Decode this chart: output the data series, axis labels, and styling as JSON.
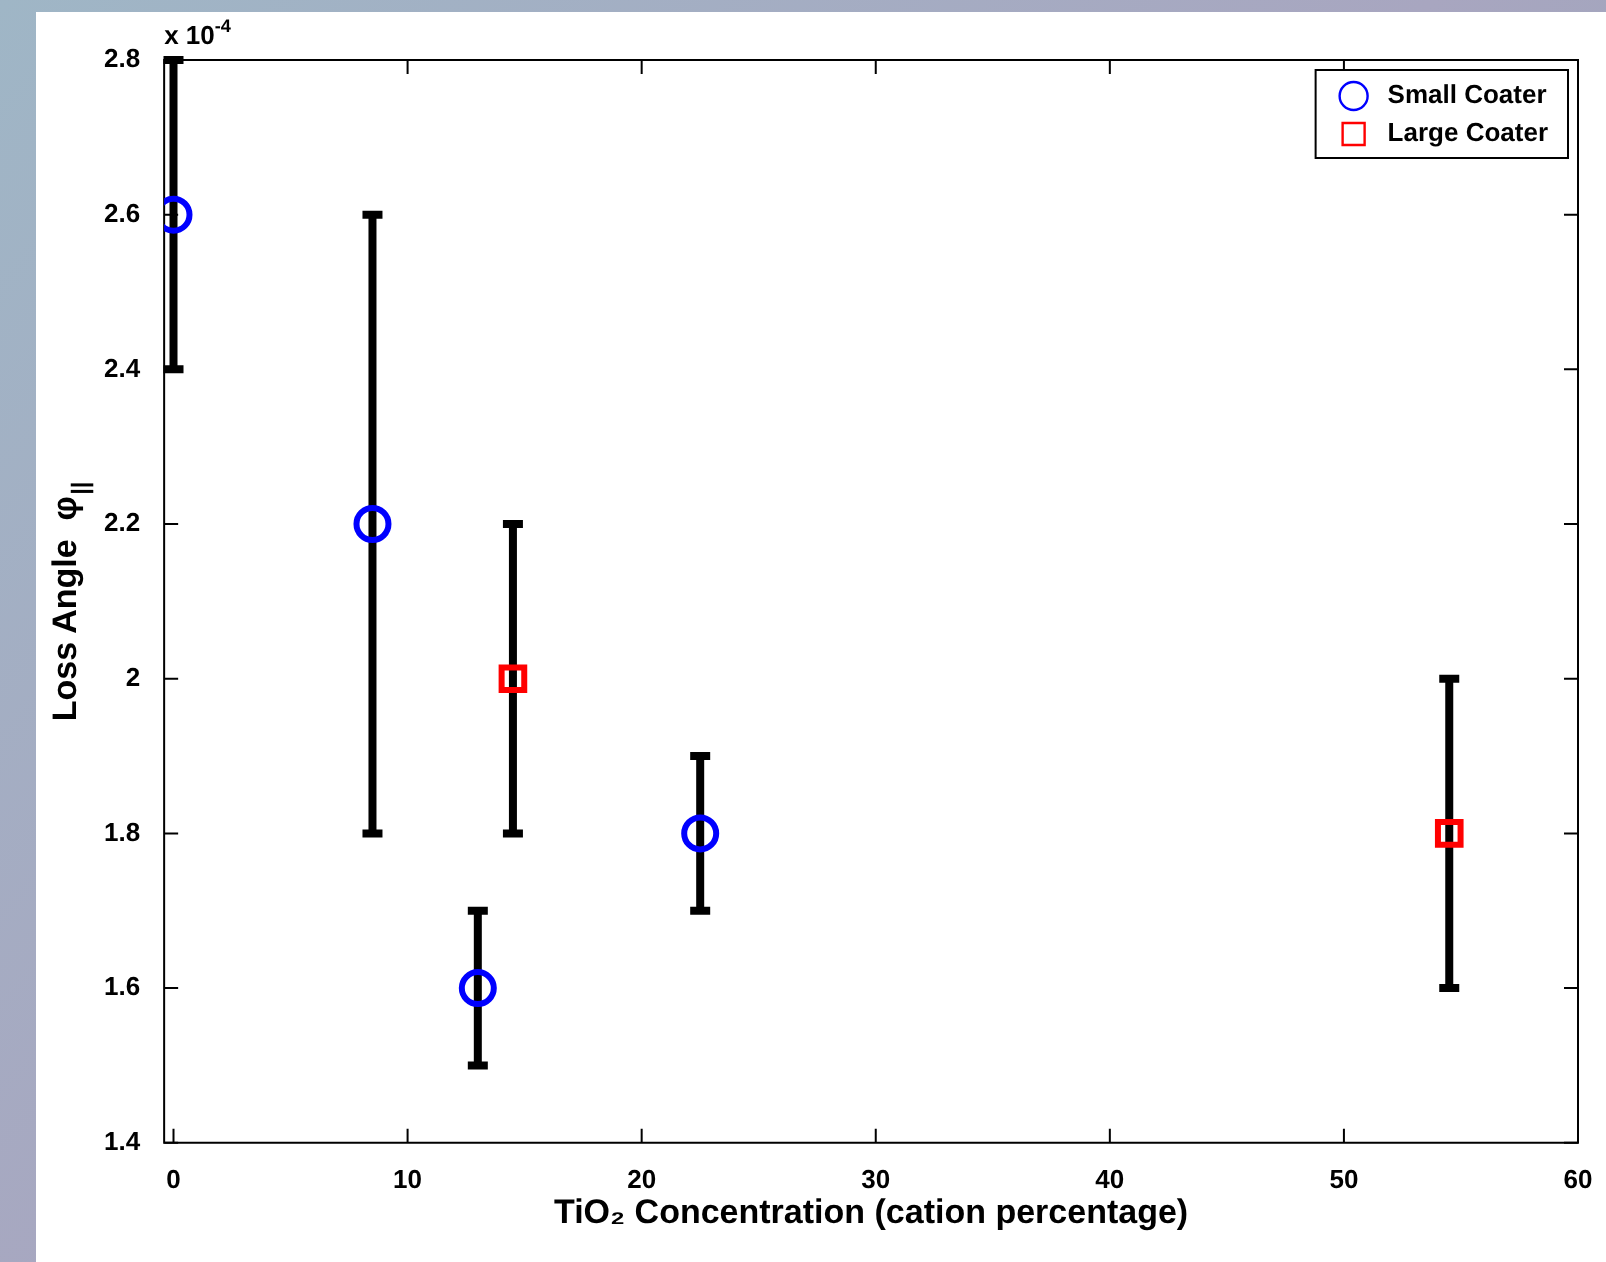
{
  "chart_data": {
    "type": "scatter",
    "xlabel": "TiO₂ Concentration (cation percentage)",
    "ylabel": "Loss Angle  φ$_{||}$",
    "annotations": [
      "x 10$^{-4}$"
    ],
    "xlim": [
      -0.4,
      60
    ],
    "xticks": [
      0,
      10,
      20,
      30,
      40,
      50,
      60
    ],
    "ylim": [
      1.4,
      2.8
    ],
    "yticks": [
      1.4,
      1.6,
      1.8,
      2,
      2.2,
      2.4,
      2.6,
      2.8
    ],
    "grid": false,
    "legend": "top right",
    "series": [
      {
        "name": "Small Coater",
        "color": "#0000ff",
        "marker": "circle",
        "x": [
          0,
          8.5,
          13,
          22.5
        ],
        "values": [
          2.6,
          2.2,
          1.6,
          1.8
        ],
        "errors": [
          0.2,
          0.4,
          0.1,
          0.1
        ]
      },
      {
        "name": "Large Coater",
        "color": "#ff0000",
        "marker": "square",
        "x": [
          14.5,
          54.5
        ],
        "values": [
          2.0,
          1.8
        ],
        "errors": [
          0.2,
          0.2
        ]
      }
    ]
  }
}
